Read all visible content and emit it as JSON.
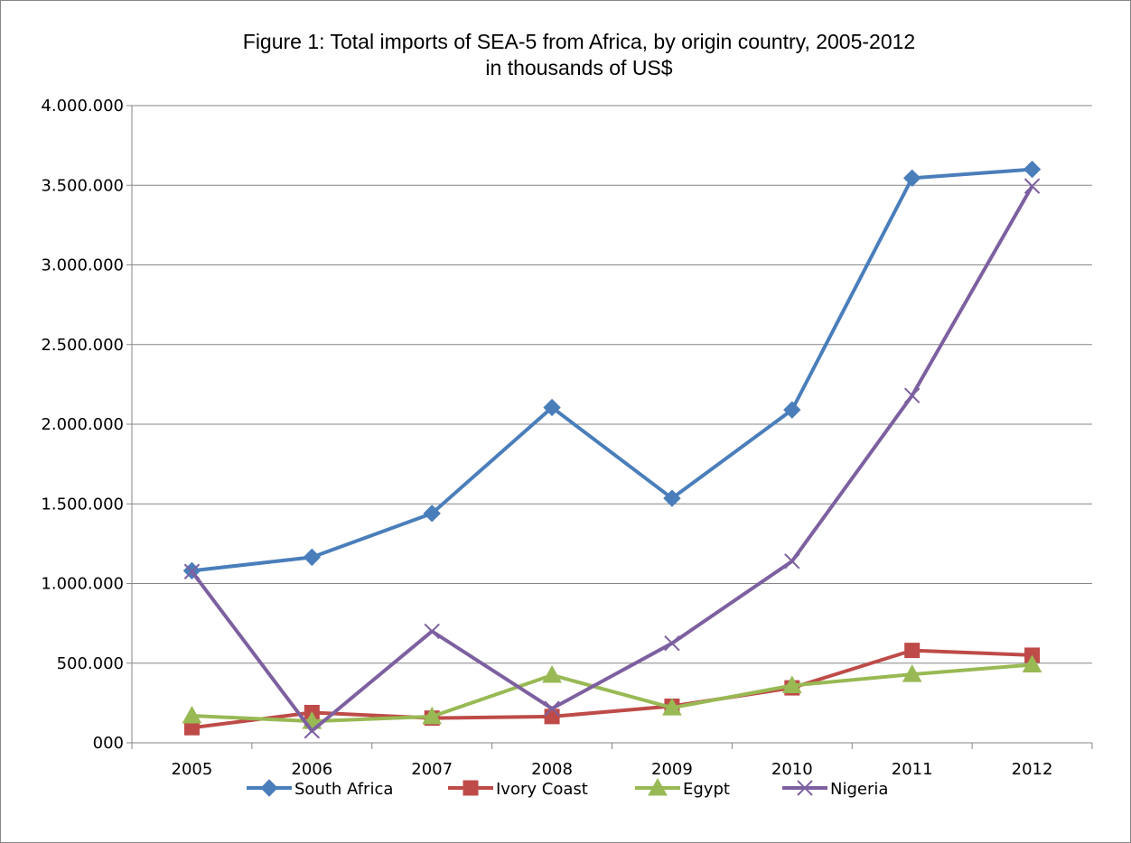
{
  "chart_data": {
    "type": "line",
    "title": "Figure 1: Total imports of SEA-5 from Africa, by origin country, 2005-2012",
    "subtitle": "in thousands of US$",
    "xlabel": "",
    "ylabel": "",
    "categories": [
      "2005",
      "2006",
      "2007",
      "2008",
      "2009",
      "2010",
      "2011",
      "2012"
    ],
    "ylim": [
      0,
      4000000
    ],
    "yticks": [
      0,
      500000,
      1000000,
      1500000,
      2000000,
      2500000,
      3000000,
      3500000,
      4000000
    ],
    "ytick_labels": [
      "000",
      "500.000",
      "1.000.000",
      "1.500.000",
      "2.000.000",
      "2.500.000",
      "3.000.000",
      "3.500.000",
      "4.000.000"
    ],
    "grid": true,
    "legend_position": "bottom",
    "series": [
      {
        "name": "South Africa",
        "color": "#4A7EBB",
        "marker": "diamond",
        "values": [
          1080000,
          1165000,
          1440000,
          2105000,
          1535000,
          2090000,
          3545000,
          3600000
        ]
      },
      {
        "name": "Ivory Coast",
        "color": "#BE4B48",
        "marker": "square",
        "values": [
          95000,
          190000,
          155000,
          165000,
          230000,
          345000,
          580000,
          550000
        ]
      },
      {
        "name": "Egypt",
        "color": "#98B954",
        "marker": "triangle",
        "values": [
          170000,
          135000,
          165000,
          425000,
          220000,
          360000,
          430000,
          490000
        ]
      },
      {
        "name": "Nigeria",
        "color": "#7D60A0",
        "marker": "x",
        "values": [
          1075000,
          75000,
          700000,
          215000,
          625000,
          1140000,
          2180000,
          3495000
        ]
      }
    ]
  }
}
